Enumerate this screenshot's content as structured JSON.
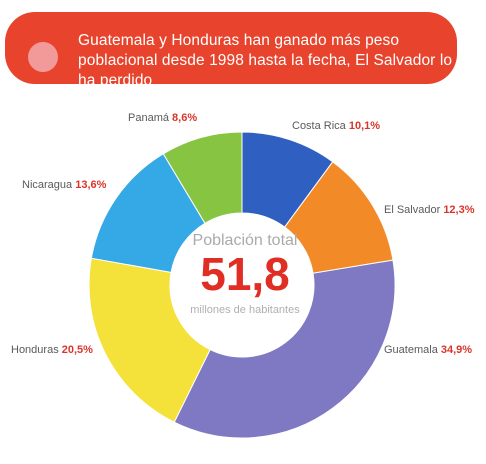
{
  "banner": {
    "text": "Guatemala y Honduras han ganado más peso poblacional desde 1998 hasta la fecha, El Salvador lo ha perdido",
    "color": "#e8432c",
    "dot_color": "#f29a9a"
  },
  "chart_data": {
    "type": "pie",
    "donut": true,
    "center": {
      "title": "Población total",
      "value": "51,8",
      "unit": "millones de habitantes"
    },
    "slices": [
      {
        "name": "Costa Rica",
        "value": 10.1,
        "value_label": "10,1%",
        "color": "#2f5fc1"
      },
      {
        "name": "El Salvador",
        "value": 12.3,
        "value_label": "12,3%",
        "color": "#f28a28"
      },
      {
        "name": "Guatemala",
        "value": 34.9,
        "value_label": "34,9%",
        "color": "#7f78c3"
      },
      {
        "name": "Honduras",
        "value": 20.5,
        "value_label": "20,5%",
        "color": "#f4e23a"
      },
      {
        "name": "Nicaragua",
        "value": 13.6,
        "value_label": "13,6%",
        "color": "#35a8e6"
      },
      {
        "name": "Panamá",
        "value": 8.6,
        "value_label": "8,6%",
        "color": "#86c441"
      }
    ],
    "start": "top",
    "direction": "clockwise"
  }
}
